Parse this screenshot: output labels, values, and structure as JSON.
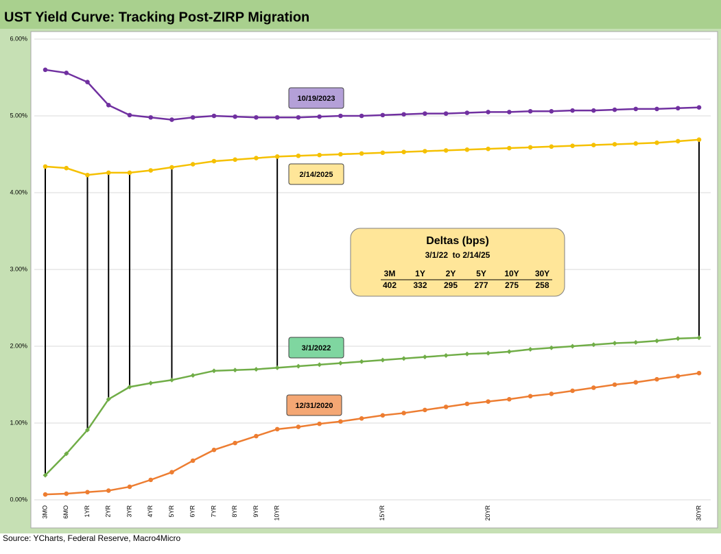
{
  "chart_data": {
    "type": "line",
    "title": "UST Yield Curve: Tracking Post-ZIRP Migration",
    "source": "Source: YCharts, Federal Reserve, Macro4Micro",
    "categories": [
      "3MO",
      "6MO",
      "1YR",
      "2YR",
      "3YR",
      "4YR",
      "5YR",
      "6YR",
      "7YR",
      "8YR",
      "9YR",
      "10YR",
      null,
      null,
      null,
      null,
      "15YR",
      null,
      null,
      null,
      null,
      "20YR",
      null,
      null,
      null,
      null,
      null,
      null,
      null,
      null,
      null,
      "30YR"
    ],
    "ylim": [
      0,
      6
    ],
    "yticks": [
      {
        "value": 0,
        "label": "0.00%"
      },
      {
        "value": 1,
        "label": "1.00%"
      },
      {
        "value": 2,
        "label": "2.00%"
      },
      {
        "value": 3,
        "label": "3.00%"
      },
      {
        "value": 4,
        "label": "4.00%"
      },
      {
        "value": 5,
        "label": "5.00%"
      },
      {
        "value": 6,
        "label": "6.00%"
      }
    ],
    "grid": true,
    "series": [
      {
        "name": "10/19/2023",
        "color": "#7030a0",
        "label_color": "#b4a0d8",
        "values": [
          5.6,
          5.56,
          5.44,
          5.14,
          5.01,
          4.98,
          4.95,
          4.98,
          5.0,
          4.99,
          4.98,
          4.98,
          4.98,
          4.99,
          5.0,
          5.0,
          5.01,
          5.02,
          5.03,
          5.03,
          5.04,
          5.05,
          5.05,
          5.06,
          5.06,
          5.07,
          5.07,
          5.08,
          5.09,
          5.09,
          5.1,
          5.11
        ]
      },
      {
        "name": "2/14/2025",
        "color": "#f5c000",
        "label_color": "#ffe699",
        "values": [
          4.34,
          4.32,
          4.23,
          4.26,
          4.26,
          4.29,
          4.33,
          4.37,
          4.41,
          4.43,
          4.45,
          4.47,
          4.48,
          4.49,
          4.5,
          4.51,
          4.52,
          4.53,
          4.54,
          4.55,
          4.56,
          4.57,
          4.58,
          4.59,
          4.6,
          4.61,
          4.62,
          4.63,
          4.64,
          4.65,
          4.67,
          4.69
        ]
      },
      {
        "name": "3/1/2022",
        "color": "#70ad47",
        "label_color": "#7fd6a0",
        "values": [
          0.32,
          0.6,
          0.91,
          1.31,
          1.47,
          1.52,
          1.56,
          1.62,
          1.68,
          1.69,
          1.7,
          1.72,
          1.74,
          1.76,
          1.78,
          1.8,
          1.82,
          1.84,
          1.86,
          1.88,
          1.9,
          1.91,
          1.93,
          1.96,
          1.98,
          2.0,
          2.02,
          2.04,
          2.05,
          2.07,
          2.1,
          2.11
        ]
      },
      {
        "name": "12/31/2020",
        "color": "#ed7d31",
        "label_color": "#f4a774",
        "values": [
          0.07,
          0.08,
          0.1,
          0.12,
          0.17,
          0.26,
          0.36,
          0.51,
          0.65,
          0.74,
          0.83,
          0.92,
          0.95,
          0.99,
          1.02,
          1.06,
          1.1,
          1.13,
          1.17,
          1.21,
          1.25,
          1.28,
          1.31,
          1.35,
          1.38,
          1.42,
          1.46,
          1.5,
          1.53,
          1.57,
          1.61,
          1.65
        ]
      }
    ],
    "deltas": {
      "title": "Deltas (bps)",
      "subtitle": "3/1/22  to 2/14/25",
      "headers": [
        "3M",
        "1Y",
        "2Y",
        "5Y",
        "10Y",
        "30Y"
      ],
      "values": [
        402,
        332,
        295,
        277,
        275,
        258
      ]
    }
  }
}
